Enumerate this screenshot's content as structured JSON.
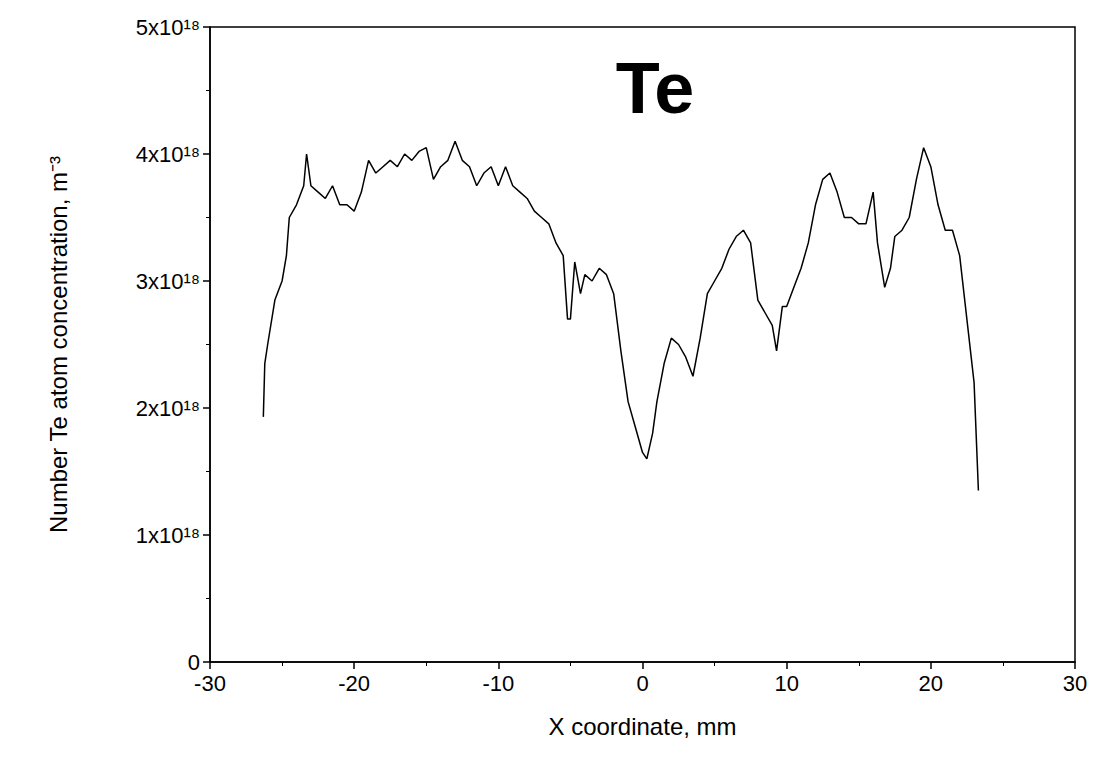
{
  "chart_data": {
    "type": "line",
    "annotation": "Te",
    "xlabel": "X coordinate, mm",
    "ylabel": "Number Te atom concentration, m⁻³",
    "color": "#000000",
    "grid": false,
    "xlim": [
      -30,
      30
    ],
    "xticks": [
      -30,
      -20,
      -10,
      0,
      10,
      20,
      30
    ],
    "ylim": [
      0,
      5e+18
    ],
    "yticks": [
      0,
      {
        "value": 1e+18,
        "label": "1x10¹⁸"
      },
      {
        "value": 2e+18,
        "label": "2x10¹⁸"
      },
      {
        "value": 3e+18,
        "label": "3x10¹⁸"
      },
      {
        "value": 4e+18,
        "label": "4x10¹⁸"
      },
      {
        "value": 5e+18,
        "label": "5x10¹⁸"
      }
    ],
    "x": [
      -26.3,
      -26.2,
      -26,
      -25.5,
      -25,
      -24.7,
      -24.5,
      -24,
      -23.5,
      -23.3,
      -23,
      -22.5,
      -22,
      -21.5,
      -21,
      -20.5,
      -20,
      -19.5,
      -19,
      -18.5,
      -18,
      -17.5,
      -17,
      -16.5,
      -16,
      -15.5,
      -15,
      -14.5,
      -14,
      -13.5,
      -13,
      -12.5,
      -12,
      -11.5,
      -11,
      -10.5,
      -10,
      -9.5,
      -9,
      -8.5,
      -8,
      -7.5,
      -7,
      -6.5,
      -6,
      -5.5,
      -5.2,
      -5,
      -4.7,
      -4.3,
      -4,
      -3.5,
      -3,
      -2.5,
      -2,
      -1.5,
      -1,
      -0.5,
      0,
      0.3,
      0.7,
      1,
      1.5,
      2,
      2.5,
      3,
      3.5,
      4,
      4.5,
      5,
      5.5,
      6,
      6.5,
      7,
      7.5,
      8,
      8.5,
      9,
      9.3,
      9.7,
      10,
      10.5,
      11,
      11.5,
      12,
      12.5,
      13,
      13.5,
      14,
      14.5,
      15,
      15.5,
      16,
      16.3,
      16.8,
      17.2,
      17.5,
      18,
      18.5,
      19,
      19.5,
      20,
      20.5,
      21,
      21.5,
      22,
      22.5,
      23,
      23.3
    ],
    "values": [
      1.93e+18,
      2.35e+18,
      2.5e+18,
      2.85e+18,
      3e+18,
      3.2e+18,
      3.5e+18,
      3.6e+18,
      3.75e+18,
      4e+18,
      3.75e+18,
      3.7e+18,
      3.65e+18,
      3.75e+18,
      3.6e+18,
      3.6e+18,
      3.55e+18,
      3.7e+18,
      3.95e+18,
      3.85e+18,
      3.9e+18,
      3.95e+18,
      3.9e+18,
      4e+18,
      3.95e+18,
      4.02e+18,
      4.05e+18,
      3.8e+18,
      3.9e+18,
      3.95e+18,
      4.1e+18,
      3.95e+18,
      3.9e+18,
      3.75e+18,
      3.85e+18,
      3.9e+18,
      3.75e+18,
      3.9e+18,
      3.75e+18,
      3.7e+18,
      3.65e+18,
      3.55e+18,
      3.5e+18,
      3.45e+18,
      3.3e+18,
      3.2e+18,
      2.7e+18,
      2.7e+18,
      3.15e+18,
      2.9e+18,
      3.05e+18,
      3e+18,
      3.1e+18,
      3.05e+18,
      2.9e+18,
      2.45e+18,
      2.05e+18,
      1.85e+18,
      1.65e+18,
      1.6e+18,
      1.8e+18,
      2.05e+18,
      2.35e+18,
      2.55e+18,
      2.5e+18,
      2.4e+18,
      2.25e+18,
      2.55e+18,
      2.9e+18,
      3e+18,
      3.1e+18,
      3.25e+18,
      3.35e+18,
      3.4e+18,
      3.3e+18,
      2.85e+18,
      2.75e+18,
      2.65e+18,
      2.45e+18,
      2.8e+18,
      2.8e+18,
      2.95e+18,
      3.1e+18,
      3.3e+18,
      3.6e+18,
      3.8e+18,
      3.85e+18,
      3.7e+18,
      3.5e+18,
      3.5e+18,
      3.45e+18,
      3.45e+18,
      3.7e+18,
      3.3e+18,
      2.95e+18,
      3.1e+18,
      3.35e+18,
      3.4e+18,
      3.5e+18,
      3.8e+18,
      4.05e+18,
      3.9e+18,
      3.6e+18,
      3.4e+18,
      3.4e+18,
      3.2e+18,
      2.7e+18,
      2.2e+18,
      1.35e+18
    ]
  }
}
